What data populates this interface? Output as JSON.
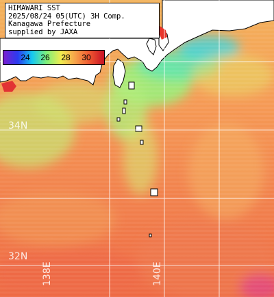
{
  "header": {
    "line1": "HIMAWARI SST",
    "line2": "2025/08/24 05(UTC) 3H Comp.",
    "line3": "Kanagawa Prefecture",
    "line4": "supplied by JAXA"
  },
  "colorbar": {
    "ticks": [
      "24",
      "26",
      "28",
      "30"
    ],
    "colors": [
      "#7a1fd0",
      "#2a3cf0",
      "#16c8f0",
      "#7ef07a",
      "#f0ec50",
      "#f7a24a",
      "#ef5630",
      "#c81226"
    ]
  },
  "gridlines": {
    "latitudes": [
      "34N",
      "32N"
    ],
    "longitudes": [
      "138E",
      "140E"
    ]
  },
  "colors": {
    "cool_water": "#86ee8a",
    "warm_water": "#f49a56",
    "hot_water": "#ee5a48",
    "land": "#ffffff",
    "coast_outline": "#000000",
    "grid": "#ffffff"
  }
}
